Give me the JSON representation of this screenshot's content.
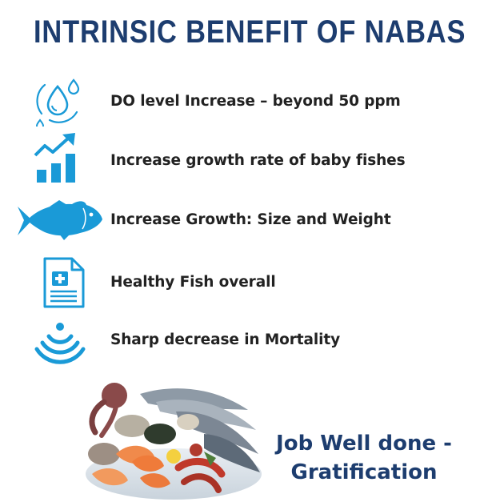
{
  "title": "INTRINSIC BENEFIT OF NABAS",
  "benefits": [
    {
      "icon": "water-drops-icon",
      "text": "DO level Increase – beyond 50 ppm"
    },
    {
      "icon": "growth-chart-icon",
      "text": "Increase growth rate of baby fishes"
    },
    {
      "icon": "fish-icon",
      "text": "Increase Growth: Size and Weight"
    },
    {
      "icon": "medical-report-icon",
      "text": "Healthy Fish overall"
    },
    {
      "icon": "signal-waves-icon",
      "text": "Sharp decrease in Mortality"
    }
  ],
  "closing": {
    "line1": "Job Well done -",
    "line2": "Gratification"
  },
  "colors": {
    "accent": "#1a9ad7",
    "title": "#1d3d6f",
    "text": "#222222"
  }
}
